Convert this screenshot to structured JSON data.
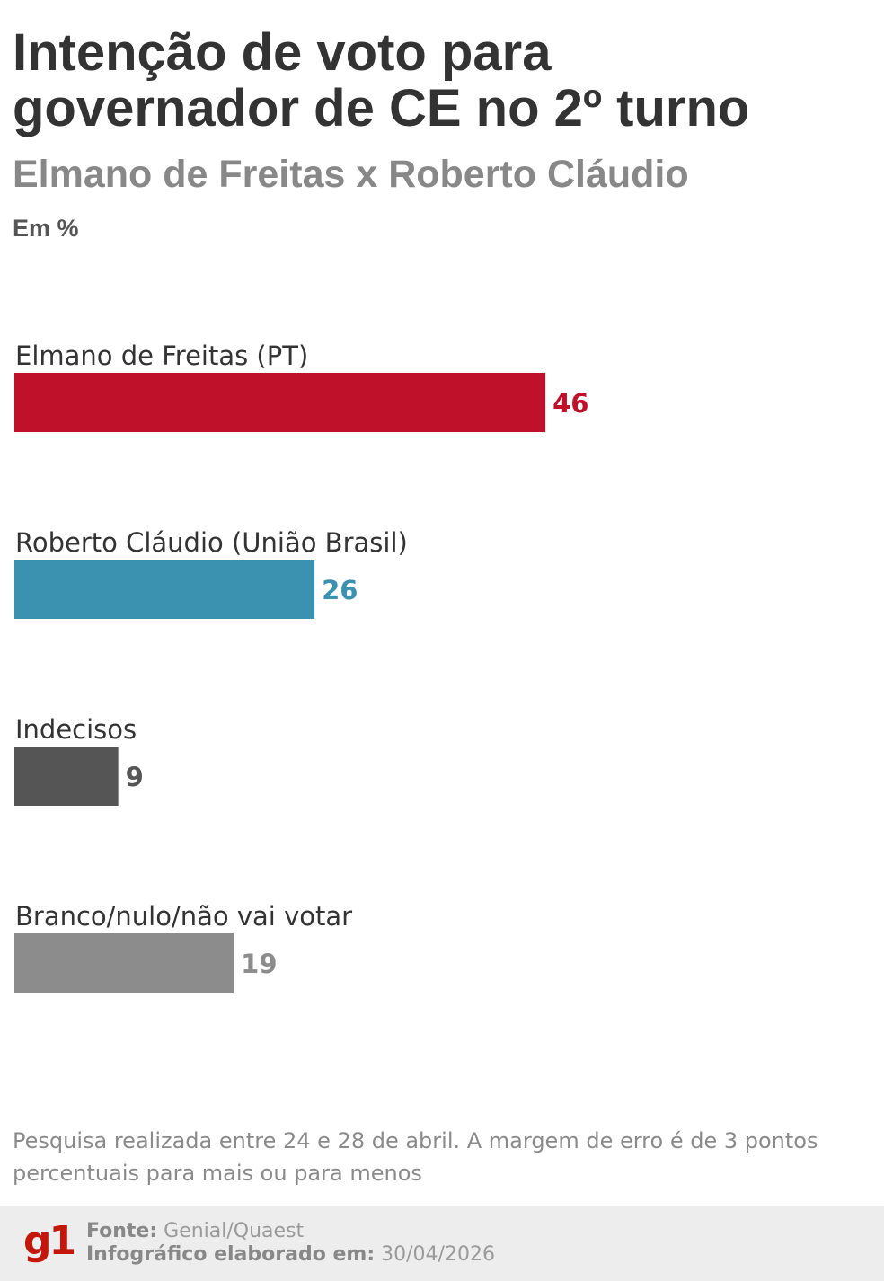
{
  "header": {
    "title_line1": "Intenção de voto para",
    "title_line2": "governador de CE no 2º turno",
    "subtitle": "Elmano de Freitas x Roberto Cláudio",
    "unit": "Em %"
  },
  "chart_data": {
    "type": "bar",
    "orientation": "horizontal",
    "categories": [
      "Elmano de Freitas (PT)",
      "Roberto Cláudio (União Brasil)",
      "Indecisos",
      "Branco/nulo/não vai votar"
    ],
    "values": [
      46,
      26,
      9,
      19
    ],
    "colors": [
      "#c0112b",
      "#3a91b0",
      "#555555",
      "#8c8c8c"
    ],
    "label_colors": [
      "#c0112b",
      "#3a91b0",
      "#555555",
      "#8c8c8c"
    ],
    "xlim": [
      0,
      100
    ],
    "grid": false,
    "legend": "none"
  },
  "footnote": "Pesquisa realizada entre 24 e 28 de abril. A margem de erro é de 3 pontos percentuais para mais ou para menos",
  "footer": {
    "logo": "g1",
    "source_label": "Fonte:",
    "source_value": "Genial/Quaest",
    "made_label": "Infográfico elaborado em:",
    "made_value": "30/04/2026"
  }
}
